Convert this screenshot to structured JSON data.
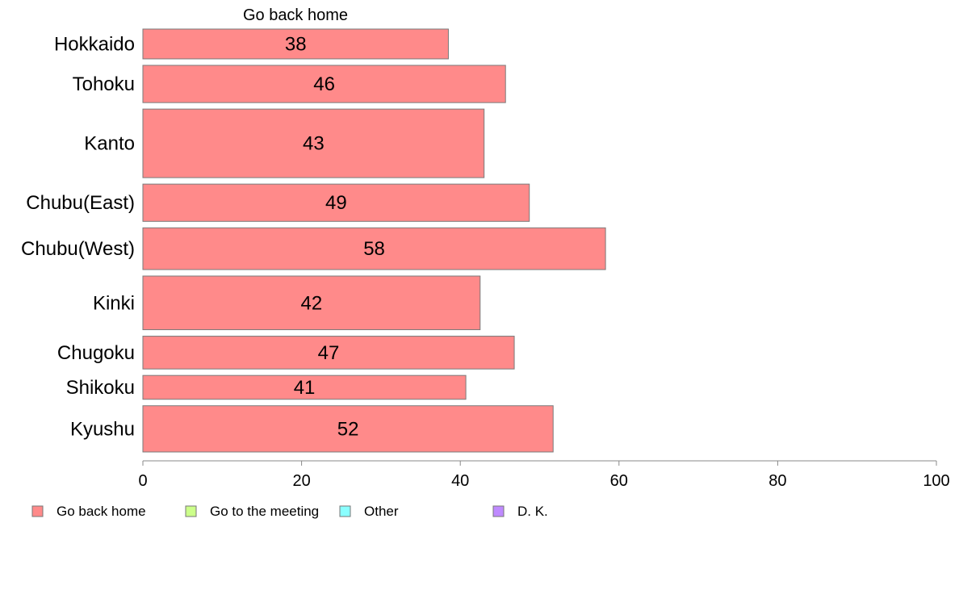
{
  "chart_data": {
    "type": "bar",
    "orientation": "horizontal",
    "title": "Go back home",
    "categories": [
      "Hokkaido",
      "Tohoku",
      "Kanto",
      "Chubu(East)",
      "Chubu(West)",
      "Kinki",
      "Chugoku",
      "Shikoku",
      "Kyushu"
    ],
    "series": [
      {
        "name": "Go back home",
        "values": [
          38.5,
          45.7,
          43.0,
          48.7,
          58.3,
          42.5,
          46.8,
          40.7,
          51.7
        ],
        "labels": [
          "38",
          "46",
          "43",
          "49",
          "58",
          "42",
          "47",
          "41",
          "52"
        ],
        "color": "#ff8a8a"
      }
    ],
    "category_weights": [
      1.0,
      1.25,
      2.3,
      1.25,
      1.4,
      1.8,
      1.1,
      0.8,
      1.55
    ],
    "xlim": [
      0,
      100
    ],
    "xticks": [
      0,
      20,
      40,
      60,
      80,
      100
    ],
    "grid": false,
    "legend_position": "bottom-left",
    "legend": [
      {
        "label": "Go back home",
        "color": "#ff8a8a"
      },
      {
        "label": "Go to the meeting",
        "color": "#ccff8a"
      },
      {
        "label": "Other",
        "color": "#8affff"
      },
      {
        "label": "D. K.",
        "color": "#bf8aff"
      }
    ]
  }
}
